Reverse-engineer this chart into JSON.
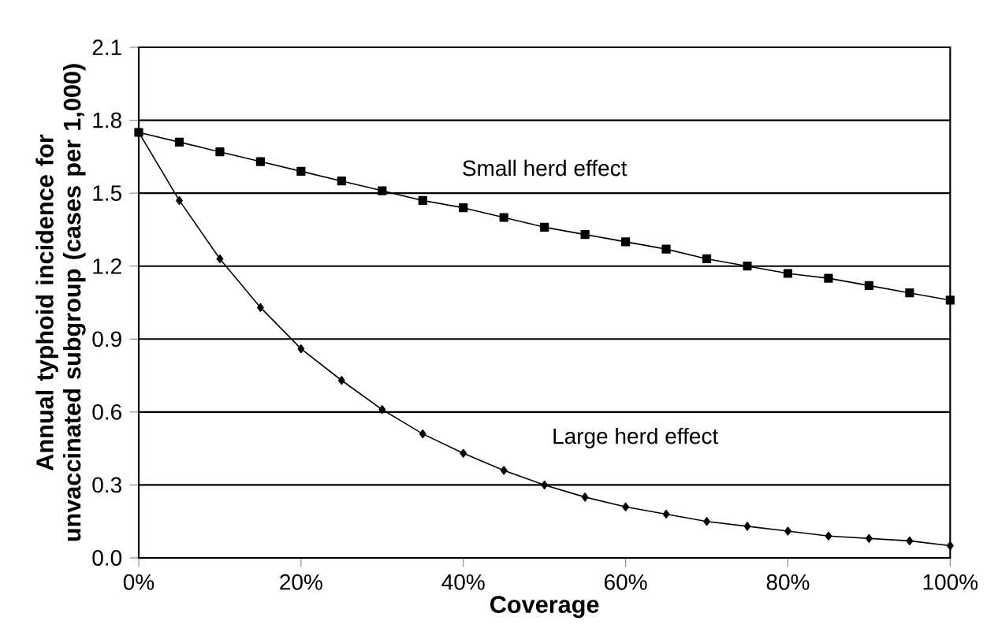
{
  "chart_data": {
    "type": "line",
    "xlabel": "Coverage",
    "ylabel": "Annual typhoid incidence for unvaccinated subgroup (cases per 1,000)",
    "x": [
      0,
      5,
      10,
      15,
      20,
      25,
      30,
      35,
      40,
      45,
      50,
      55,
      60,
      65,
      70,
      75,
      80,
      85,
      90,
      95,
      100
    ],
    "series": [
      {
        "name": "Small herd effect",
        "color": "#000000",
        "marker": "square",
        "values": [
          1.75,
          1.71,
          1.67,
          1.63,
          1.59,
          1.55,
          1.51,
          1.47,
          1.44,
          1.4,
          1.36,
          1.33,
          1.3,
          1.27,
          1.23,
          1.2,
          1.17,
          1.15,
          1.12,
          1.09,
          1.06
        ]
      },
      {
        "name": "Large herd effect",
        "color": "#000000",
        "marker": "diamond",
        "values": [
          1.75,
          1.47,
          1.23,
          1.03,
          0.86,
          0.73,
          0.61,
          0.51,
          0.43,
          0.36,
          0.3,
          0.25,
          0.21,
          0.18,
          0.15,
          0.13,
          0.11,
          0.09,
          0.08,
          0.07,
          0.05
        ]
      }
    ],
    "xlim": [
      0,
      100
    ],
    "xticks": [
      {
        "value": 0,
        "label": "0%"
      },
      {
        "value": 20,
        "label": "20%"
      },
      {
        "value": 40,
        "label": "40%"
      },
      {
        "value": 60,
        "label": "60%"
      },
      {
        "value": 80,
        "label": "80%"
      },
      {
        "value": 100,
        "label": "100%"
      }
    ],
    "ylim": [
      0,
      2.1
    ],
    "yticks": [
      {
        "value": 0,
        "label": "0.0"
      },
      {
        "value": 0.3,
        "label": "0.3"
      },
      {
        "value": 0.6,
        "label": "0.6"
      },
      {
        "value": 0.9,
        "label": "0.9"
      },
      {
        "value": 1.2,
        "label": "1.2"
      },
      {
        "value": 1.5,
        "label": "1.5"
      },
      {
        "value": 1.8,
        "label": "1.8"
      },
      {
        "value": 2.1,
        "label": "2.1"
      }
    ],
    "grid": "y",
    "legend": false,
    "line_style": "solid"
  }
}
